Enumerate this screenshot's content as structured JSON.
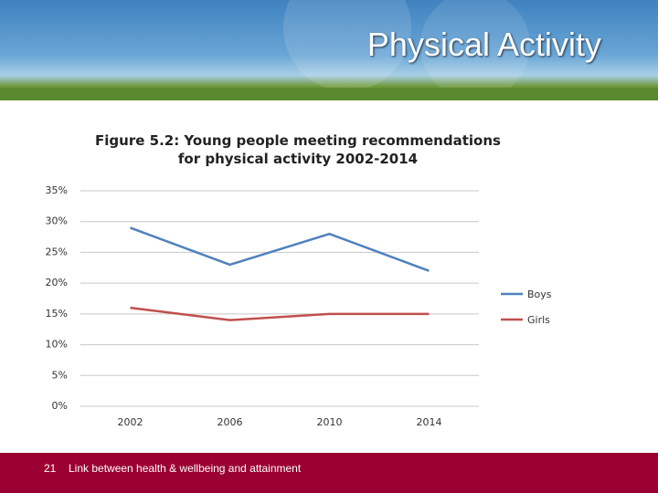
{
  "header": {
    "title": "Physical Activity"
  },
  "chart_data": {
    "type": "line",
    "title": "Figure 5.2: Young people meeting recommendations for physical activity 2002-2014",
    "categories": [
      "2002",
      "2006",
      "2010",
      "2014"
    ],
    "series": [
      {
        "name": "Boys",
        "color": "#4f81bd",
        "values": [
          29,
          23,
          28,
          22
        ]
      },
      {
        "name": "Girls",
        "color": "#c0504d",
        "values": [
          16,
          14,
          15,
          15
        ]
      }
    ],
    "ylim": [
      0,
      35
    ],
    "yticks": [
      {
        "value": 0,
        "label": "0%"
      },
      {
        "value": 5,
        "label": "5%"
      },
      {
        "value": 10,
        "label": "10%"
      },
      {
        "value": 15,
        "label": "15%"
      },
      {
        "value": 20,
        "label": "20%"
      },
      {
        "value": 25,
        "label": "25%"
      },
      {
        "value": 30,
        "label": "30%"
      },
      {
        "value": 35,
        "label": "35%"
      }
    ],
    "grid": true,
    "legend": "right"
  },
  "footer": {
    "page_number": "21",
    "text": "Link between health & wellbeing and attainment"
  }
}
